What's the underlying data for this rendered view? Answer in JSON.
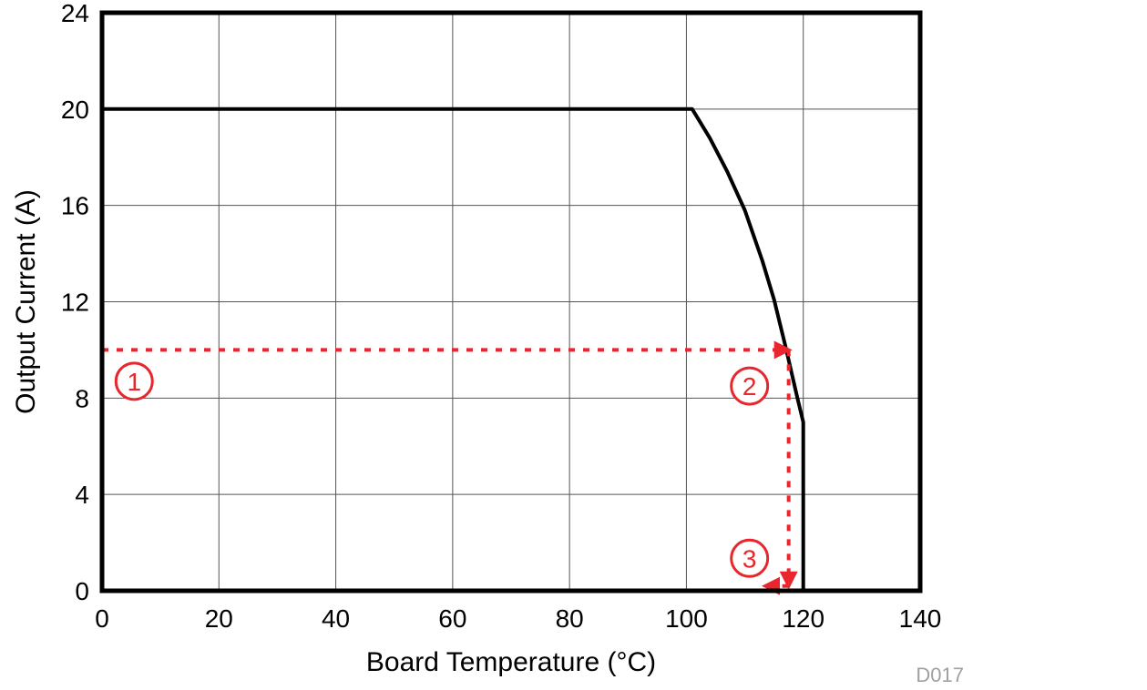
{
  "chart_data": {
    "type": "line",
    "xlabel": "Board Temperature (°C)",
    "ylabel": "Output Current (A)",
    "xlim": [
      0,
      140
    ],
    "ylim": [
      0,
      24
    ],
    "xticks": [
      0,
      20,
      40,
      60,
      80,
      100,
      120,
      140
    ],
    "yticks": [
      0,
      4,
      8,
      12,
      16,
      20,
      24
    ],
    "grid": true,
    "figure_code": "D017",
    "series": [
      {
        "color": "#000000",
        "x": [
          0,
          101,
          104,
          107,
          110,
          113,
          115,
          117,
          119,
          120,
          120
        ],
        "y": [
          20,
          20,
          18.8,
          17.4,
          15.8,
          13.7,
          12.1,
          10.1,
          8,
          7,
          0
        ]
      }
    ],
    "annotations": {
      "color": "#e8262d",
      "markers": [
        {
          "label": "1",
          "x": 5.5,
          "y": 8.7
        },
        {
          "label": "2",
          "x": 110.8,
          "y": 8.5
        },
        {
          "label": "3",
          "x": 110.8,
          "y": 1.35
        }
      ],
      "guide_lines": [
        {
          "from": [
            0,
            10
          ],
          "to": [
            117.5,
            10
          ],
          "arrow": "end"
        },
        {
          "from": [
            117.5,
            10
          ],
          "to": [
            117.5,
            0.2
          ],
          "arrow": "end"
        },
        {
          "from": [
            117.5,
            0.2
          ],
          "to": [
            113.5,
            0.2
          ],
          "arrow": "end"
        }
      ]
    }
  }
}
